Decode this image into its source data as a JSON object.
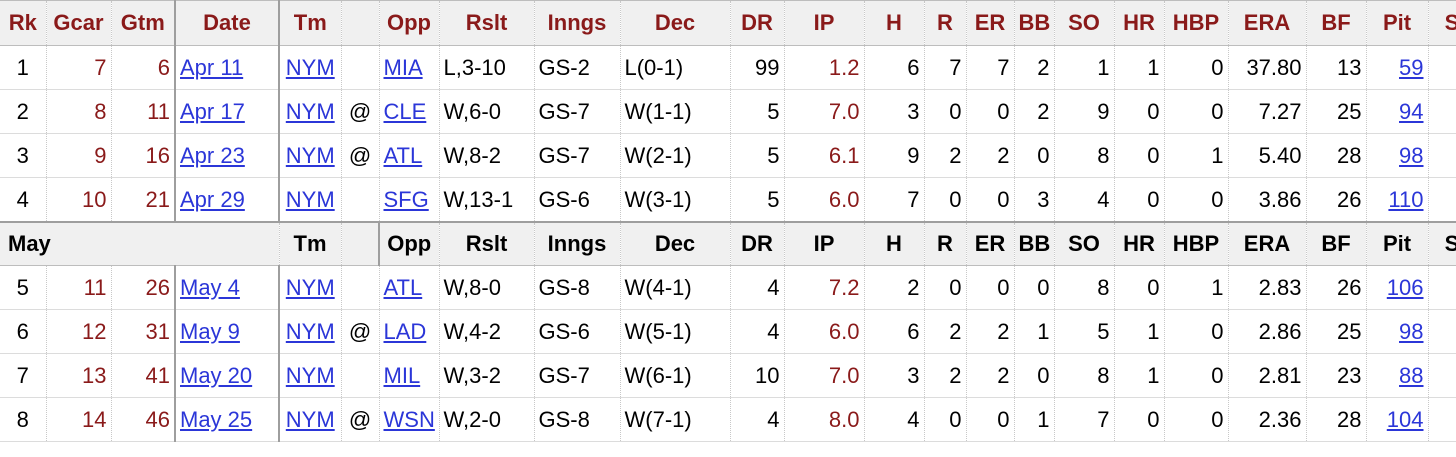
{
  "columns": [
    "Rk",
    "Gcar",
    "Gtm",
    "Date",
    "Tm",
    "",
    "Opp",
    "Rslt",
    "Inngs",
    "Dec",
    "DR",
    "IP",
    "H",
    "R",
    "ER",
    "BB",
    "SO",
    "HR",
    "HBP",
    "ERA",
    "BF",
    "Pit",
    "S"
  ],
  "month_header": {
    "label": "May",
    "cols": [
      "Tm",
      "",
      "Opp",
      "Rslt",
      "Inngs",
      "Dec",
      "DR",
      "IP",
      "H",
      "R",
      "ER",
      "BB",
      "SO",
      "HR",
      "HBP",
      "ERA",
      "BF",
      "Pit",
      "S"
    ]
  },
  "rows_april": [
    {
      "rk": "1",
      "gcar": "7",
      "gtm": "6",
      "date": "Apr 11",
      "tm": "NYM",
      "at": "",
      "opp": "MIA",
      "rslt": "L,3-10",
      "inngs": "GS-2",
      "dec": "L(0-1)",
      "dr": "99",
      "ip": "1.2",
      "h": "6",
      "r": "7",
      "er": "7",
      "bb": "2",
      "so": "1",
      "hr": "1",
      "hbp": "0",
      "era": "37.80",
      "bf": "13",
      "pit": "59"
    },
    {
      "rk": "2",
      "gcar": "8",
      "gtm": "11",
      "date": "Apr 17",
      "tm": "NYM",
      "at": "@",
      "opp": "CLE",
      "rslt": "W,6-0",
      "inngs": "GS-7",
      "dec": "W(1-1)",
      "dr": "5",
      "ip": "7.0",
      "h": "3",
      "r": "0",
      "er": "0",
      "bb": "2",
      "so": "9",
      "hr": "0",
      "hbp": "0",
      "era": "7.27",
      "bf": "25",
      "pit": "94"
    },
    {
      "rk": "3",
      "gcar": "9",
      "gtm": "16",
      "date": "Apr 23",
      "tm": "NYM",
      "at": "@",
      "opp": "ATL",
      "rslt": "W,8-2",
      "inngs": "GS-7",
      "dec": "W(2-1)",
      "dr": "5",
      "ip": "6.1",
      "h": "9",
      "r": "2",
      "er": "2",
      "bb": "0",
      "so": "8",
      "hr": "0",
      "hbp": "1",
      "era": "5.40",
      "bf": "28",
      "pit": "98"
    },
    {
      "rk": "4",
      "gcar": "10",
      "gtm": "21",
      "date": "Apr 29",
      "tm": "NYM",
      "at": "",
      "opp": "SFG",
      "rslt": "W,13-1",
      "inngs": "GS-6",
      "dec": "W(3-1)",
      "dr": "5",
      "ip": "6.0",
      "h": "7",
      "r": "0",
      "er": "0",
      "bb": "3",
      "so": "4",
      "hr": "0",
      "hbp": "0",
      "era": "3.86",
      "bf": "26",
      "pit": "110"
    }
  ],
  "rows_may": [
    {
      "rk": "5",
      "gcar": "11",
      "gtm": "26",
      "date": "May 4",
      "tm": "NYM",
      "at": "",
      "opp": "ATL",
      "rslt": "W,8-0",
      "inngs": "GS-8",
      "dec": "W(4-1)",
      "dr": "4",
      "ip": "7.2",
      "h": "2",
      "r": "0",
      "er": "0",
      "bb": "0",
      "so": "8",
      "hr": "0",
      "hbp": "1",
      "era": "2.83",
      "bf": "26",
      "pit": "106"
    },
    {
      "rk": "6",
      "gcar": "12",
      "gtm": "31",
      "date": "May 9",
      "tm": "NYM",
      "at": "@",
      "opp": "LAD",
      "rslt": "W,4-2",
      "inngs": "GS-6",
      "dec": "W(5-1)",
      "dr": "4",
      "ip": "6.0",
      "h": "6",
      "r": "2",
      "er": "2",
      "bb": "1",
      "so": "5",
      "hr": "1",
      "hbp": "0",
      "era": "2.86",
      "bf": "25",
      "pit": "98"
    },
    {
      "rk": "7",
      "gcar": "13",
      "gtm": "41",
      "date": "May 20",
      "tm": "NYM",
      "at": "",
      "opp": "MIL",
      "rslt": "W,3-2",
      "inngs": "GS-7",
      "dec": "W(6-1)",
      "dr": "10",
      "ip": "7.0",
      "h": "3",
      "r": "2",
      "er": "2",
      "bb": "0",
      "so": "8",
      "hr": "1",
      "hbp": "0",
      "era": "2.81",
      "bf": "23",
      "pit": "88"
    },
    {
      "rk": "8",
      "gcar": "14",
      "gtm": "46",
      "date": "May 25",
      "tm": "NYM",
      "at": "@",
      "opp": "WSN",
      "rslt": "W,2-0",
      "inngs": "GS-8",
      "dec": "W(7-1)",
      "dr": "4",
      "ip": "8.0",
      "h": "4",
      "r": "0",
      "er": "0",
      "bb": "1",
      "so": "7",
      "hr": "0",
      "hbp": "0",
      "era": "2.36",
      "bf": "28",
      "pit": "104"
    }
  ],
  "colors": {
    "header_text": "#8a1a1a",
    "link": "#2b36d8",
    "header_bg": "#f0f0f0"
  }
}
